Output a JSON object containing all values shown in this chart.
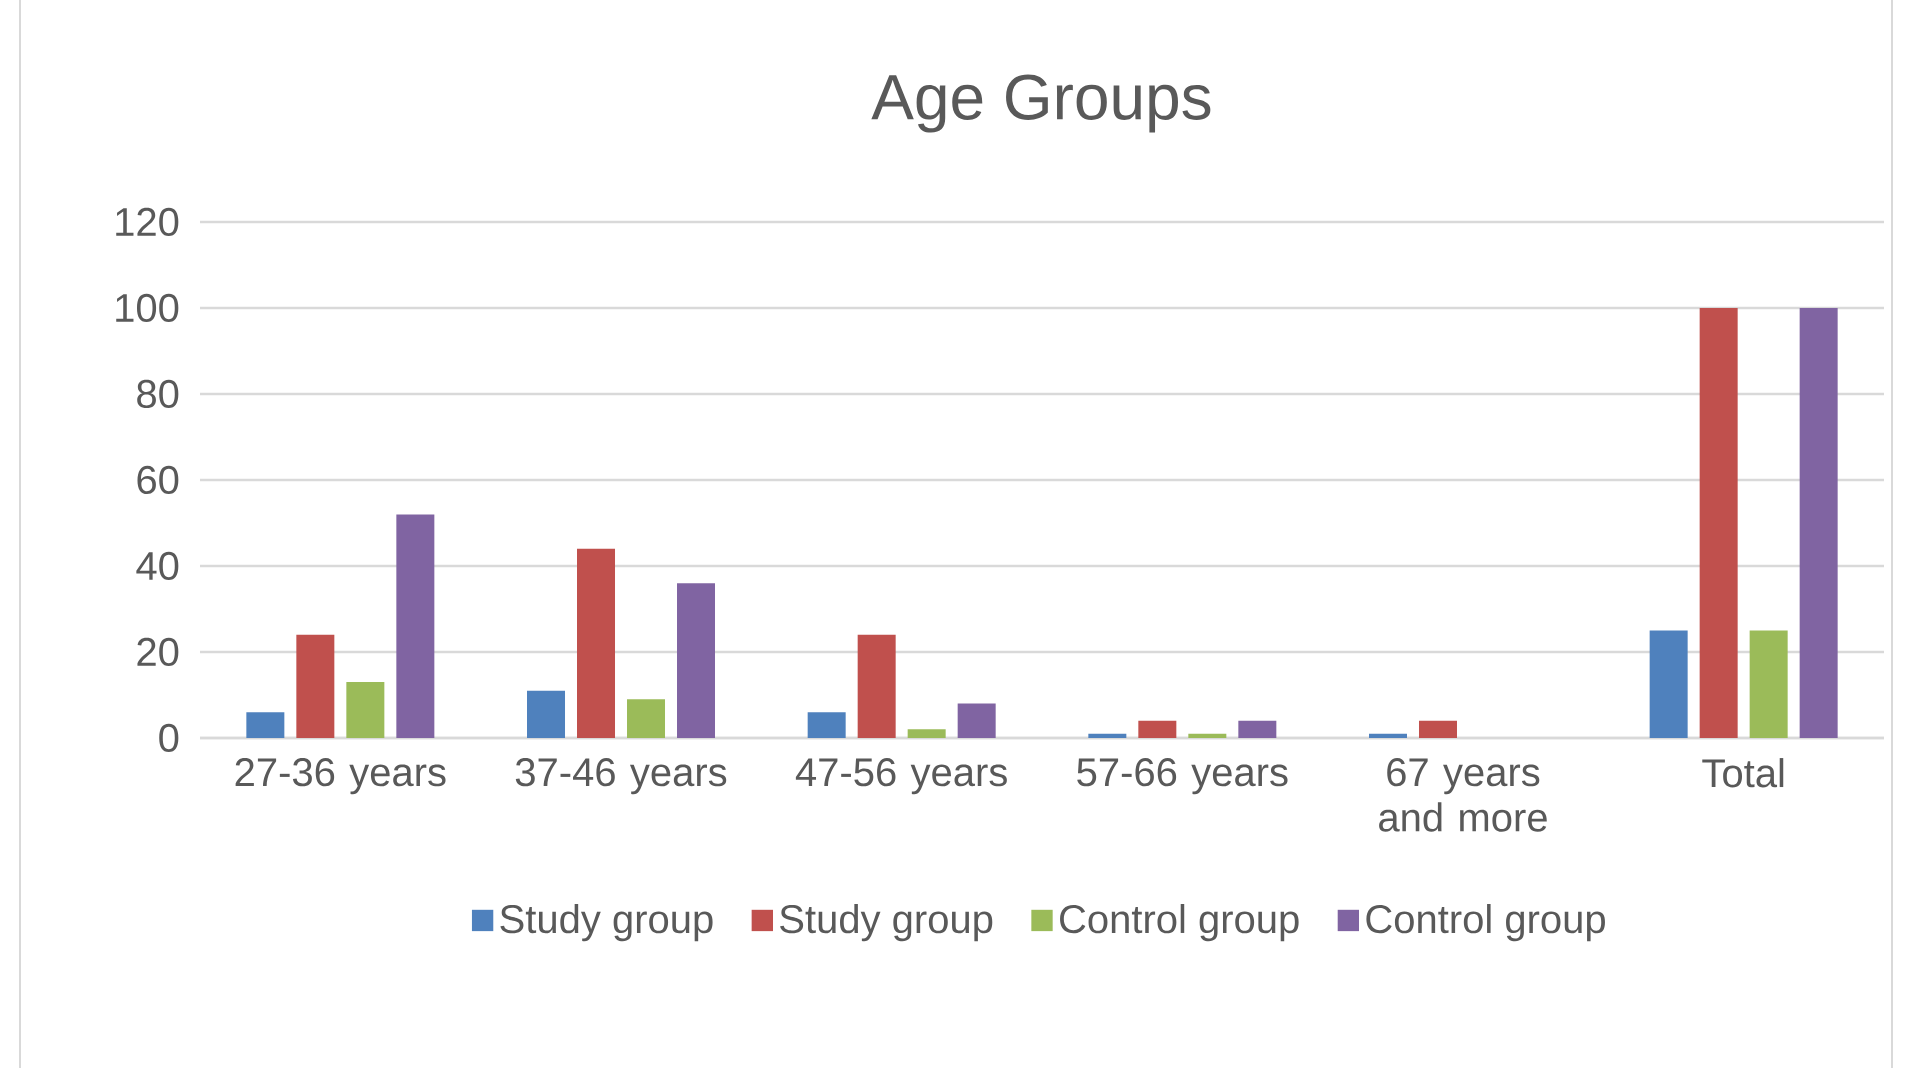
{
  "chart_data": {
    "type": "bar",
    "title": "Age Groups",
    "categories": [
      "27-36 years",
      "37-46 years",
      "47-56 years",
      "57-66 years",
      "67 years and more",
      "Total"
    ],
    "series": [
      {
        "name": "Study group",
        "color": "#4f81bd",
        "values": [
          6,
          11,
          6,
          1,
          1,
          25
        ]
      },
      {
        "name": "Study group",
        "color": "#c0504d",
        "values": [
          24,
          44,
          24,
          4,
          4,
          100
        ]
      },
      {
        "name": "Control group",
        "color": "#9bbb59",
        "values": [
          13,
          9,
          2,
          1,
          0,
          25
        ]
      },
      {
        "name": "Control group",
        "color": "#8064a2",
        "values": [
          52,
          36,
          8,
          4,
          0,
          100
        ]
      }
    ],
    "ylim": [
      0,
      120
    ],
    "yticks": [
      0,
      20,
      40,
      60,
      80,
      100,
      120
    ],
    "grid": "y",
    "legend": "bottom"
  }
}
